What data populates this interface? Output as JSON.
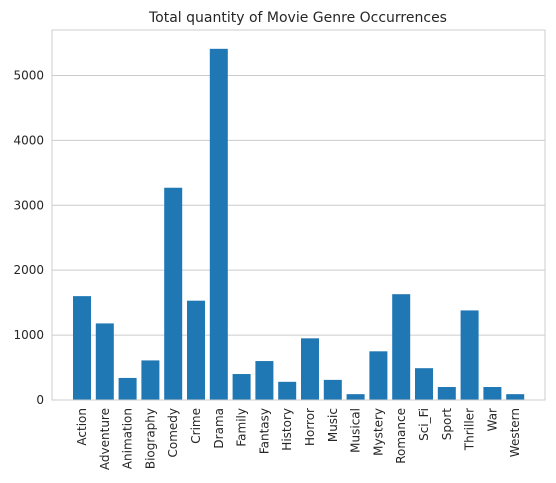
{
  "chart_data": {
    "type": "bar",
    "title": "Total quantity of Movie Genre Occurrences",
    "xlabel": "",
    "ylabel": "",
    "categories": [
      "Action",
      "Adventure",
      "Animation",
      "Biography",
      "Comedy",
      "Crime",
      "Drama",
      "Family",
      "Fantasy",
      "History",
      "Horror",
      "Music",
      "Musical",
      "Mystery",
      "Romance",
      "Sci_Fi",
      "Sport",
      "Thriller",
      "War",
      "Western"
    ],
    "values": [
      1600,
      1180,
      340,
      610,
      3270,
      1530,
      5410,
      400,
      600,
      280,
      950,
      310,
      90,
      750,
      1630,
      490,
      200,
      1380,
      200,
      90
    ],
    "yticks": [
      0,
      1000,
      2000,
      3000,
      4000,
      5000
    ],
    "ylim": [
      0,
      5700
    ],
    "grid": "horizontal",
    "bar_color": "#1f77b4"
  }
}
